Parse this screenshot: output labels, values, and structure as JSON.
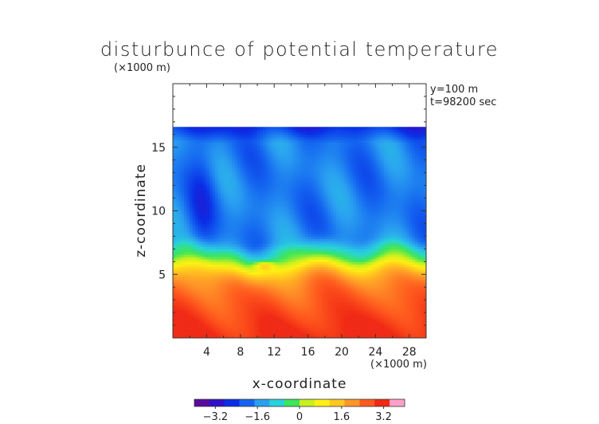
{
  "chart_data": {
    "type": "heatmap",
    "title": "disturbunce of potential temperature",
    "xlabel": "x-coordinate",
    "ylabel": "z-coordinate",
    "x_unit": "(×1000 m)",
    "z_unit": "(×1000 m)",
    "info_lines": [
      "y=100  m",
      "t=98200 sec"
    ],
    "xlim": [
      0,
      30
    ],
    "ylim": [
      0,
      20
    ],
    "x_ticks": [
      "4",
      "8",
      "12",
      "16",
      "20",
      "24",
      "28"
    ],
    "x_tick_values": [
      4,
      8,
      12,
      16,
      20,
      24,
      28
    ],
    "y_ticks": [
      "5",
      "10",
      "15"
    ],
    "y_tick_values": [
      5,
      10,
      15
    ],
    "data_top_z": 16.6,
    "colorbar": {
      "range": [
        -4,
        4
      ],
      "tick_labels": [
        "−3.2",
        "−1.6",
        "0",
        "1.6",
        "3.2"
      ],
      "tick_values": [
        -3.2,
        -1.6,
        0,
        1.6,
        3.2
      ],
      "colors": [
        "#5a0aa0",
        "#2f10c8",
        "#0a2ee6",
        "#1464f0",
        "#2aa0f0",
        "#28d2dc",
        "#3ce65a",
        "#c8f01e",
        "#fff014",
        "#ffc81e",
        "#ff9628",
        "#ff5a1e",
        "#f02814",
        "#ffa0c8"
      ]
    },
    "field_description_values": {
      "upper_layer_mean": -1.9,
      "deep_anomaly": -2.6,
      "lower_layer_mean": 2.1,
      "surface_max": 3.4
    }
  }
}
